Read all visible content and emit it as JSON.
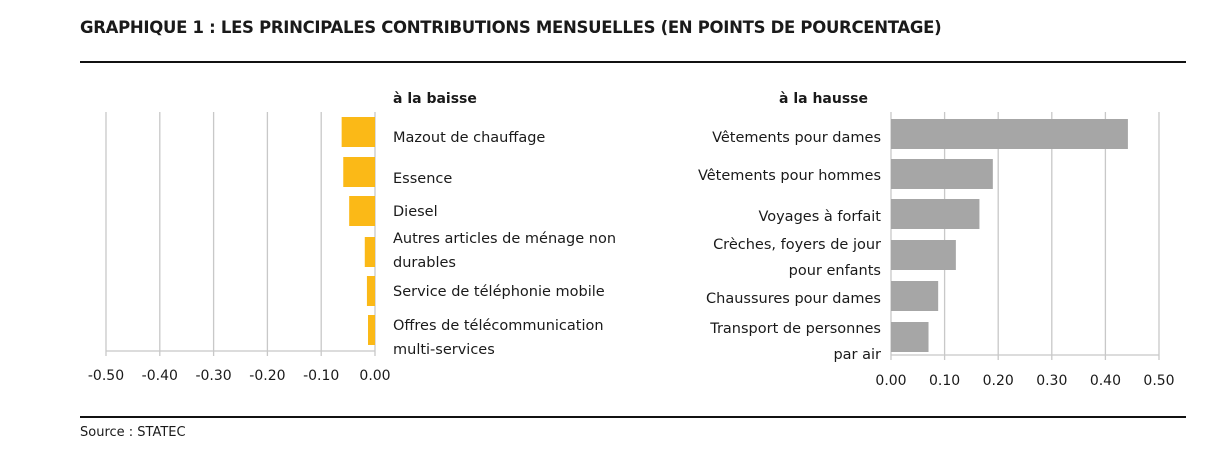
{
  "title": "GRAPHIQUE 1 : LES PRINCIPALES CONTRIBUTIONS MENSUELLES (EN POINTS DE POURCENTAGE)",
  "source": "Source : STATEC",
  "chart_data": [
    {
      "type": "bar",
      "orientation": "horizontal",
      "title": "à la baisse",
      "categories": [
        [
          "Mazout de chauffage"
        ],
        [
          "Essence"
        ],
        [
          "Diesel"
        ],
        [
          "Autres articles de ménage non",
          "durables"
        ],
        [
          "Service de téléphonie mobile"
        ],
        [
          "Offres de télécommunication",
          "multi-services"
        ]
      ],
      "values": [
        -0.062,
        -0.059,
        -0.048,
        -0.019,
        -0.015,
        -0.013
      ],
      "xlim": [
        -0.5,
        0
      ],
      "ticks": [
        "-0.50",
        "-0.40",
        "-0.30",
        "-0.20",
        "-0.10",
        "0.00"
      ],
      "tick_values": [
        -0.5,
        -0.4,
        -0.3,
        -0.2,
        -0.1,
        0
      ],
      "grid": true,
      "color": "#FBB917"
    },
    {
      "type": "bar",
      "orientation": "horizontal",
      "title": "à la hausse",
      "categories": [
        [
          "Vêtements pour dames"
        ],
        [
          "Vêtements pour hommes"
        ],
        [
          "Voyages à forfait"
        ],
        [
          "Crèches, foyers de jour",
          "pour enfants"
        ],
        [
          "Chaussures pour dames"
        ],
        [
          "Transport de personnes",
          "par air"
        ]
      ],
      "values": [
        0.442,
        0.19,
        0.165,
        0.121,
        0.088,
        0.07
      ],
      "xlim": [
        0,
        0.5
      ],
      "ticks": [
        "0.00",
        "0.10",
        "0.20",
        "0.30",
        "0.40",
        "0.50"
      ],
      "tick_values": [
        0,
        0.1,
        0.2,
        0.3,
        0.4,
        0.5
      ],
      "grid": true,
      "color": "#A6A6A6"
    }
  ]
}
